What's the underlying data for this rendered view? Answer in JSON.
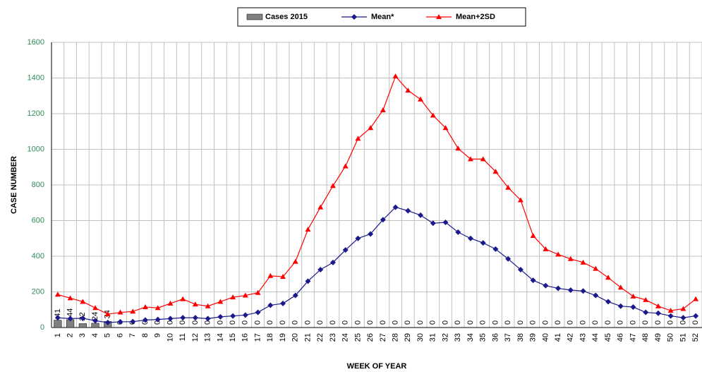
{
  "chart_data": {
    "type": "bar-line",
    "y_label": "CASE NUMBER",
    "x_label": "WEEK OF YEAR",
    "categories": [
      "1",
      "2",
      "3",
      "4",
      "5",
      "6",
      "7",
      "8",
      "9",
      "10",
      "11",
      "12",
      "13",
      "14",
      "15",
      "16",
      "17",
      "18",
      "19",
      "20",
      "21",
      "22",
      "23",
      "24",
      "25",
      "26",
      "27",
      "28",
      "29",
      "30",
      "31",
      "32",
      "33",
      "34",
      "35",
      "36",
      "37",
      "38",
      "39",
      "40",
      "41",
      "42",
      "43",
      "44",
      "45",
      "46",
      "47",
      "48",
      "49",
      "50",
      "51",
      "52"
    ],
    "series": [
      {
        "name": "Cases 2015",
        "type": "bar",
        "color": "#808080",
        "values": [
          41,
          44,
          22,
          24,
          34,
          0,
          0,
          0,
          0,
          0,
          0,
          0,
          0,
          0,
          0,
          0,
          0,
          0,
          0,
          0,
          0,
          0,
          0,
          0,
          0,
          0,
          0,
          0,
          0,
          0,
          0,
          0,
          0,
          0,
          0,
          0,
          0,
          0,
          0,
          0,
          0,
          0,
          0,
          0,
          0,
          0,
          0,
          0,
          0,
          0,
          0,
          0
        ]
      },
      {
        "name": "Mean*",
        "type": "line",
        "marker": "diamond",
        "color": "#1a1a8c",
        "values": [
          55,
          50,
          52,
          38,
          28,
          32,
          33,
          42,
          45,
          50,
          55,
          55,
          50,
          60,
          65,
          70,
          85,
          125,
          135,
          180,
          260,
          325,
          365,
          435,
          500,
          525,
          605,
          675,
          655,
          630,
          585,
          590,
          535,
          500,
          475,
          440,
          385,
          325,
          265,
          235,
          220,
          210,
          205,
          180,
          145,
          120,
          115,
          85,
          80,
          65,
          55,
          65
        ]
      },
      {
        "name": "Mean+2SD",
        "type": "line",
        "marker": "triangle",
        "color": "#ff0000",
        "values": [
          185,
          165,
          145,
          110,
          75,
          85,
          90,
          115,
          110,
          135,
          160,
          130,
          120,
          145,
          170,
          180,
          195,
          290,
          285,
          370,
          550,
          675,
          795,
          905,
          1060,
          1120,
          1220,
          1410,
          1330,
          1280,
          1190,
          1120,
          1005,
          945,
          945,
          875,
          785,
          715,
          515,
          440,
          410,
          385,
          365,
          330,
          280,
          225,
          175,
          155,
          120,
          95,
          105,
          160
        ]
      }
    ],
    "ylim": [
      0,
      1600
    ],
    "yticks": [
      0,
      200,
      400,
      600,
      800,
      1000,
      1200,
      1400,
      1600
    ],
    "grid": true,
    "legend": "top"
  }
}
